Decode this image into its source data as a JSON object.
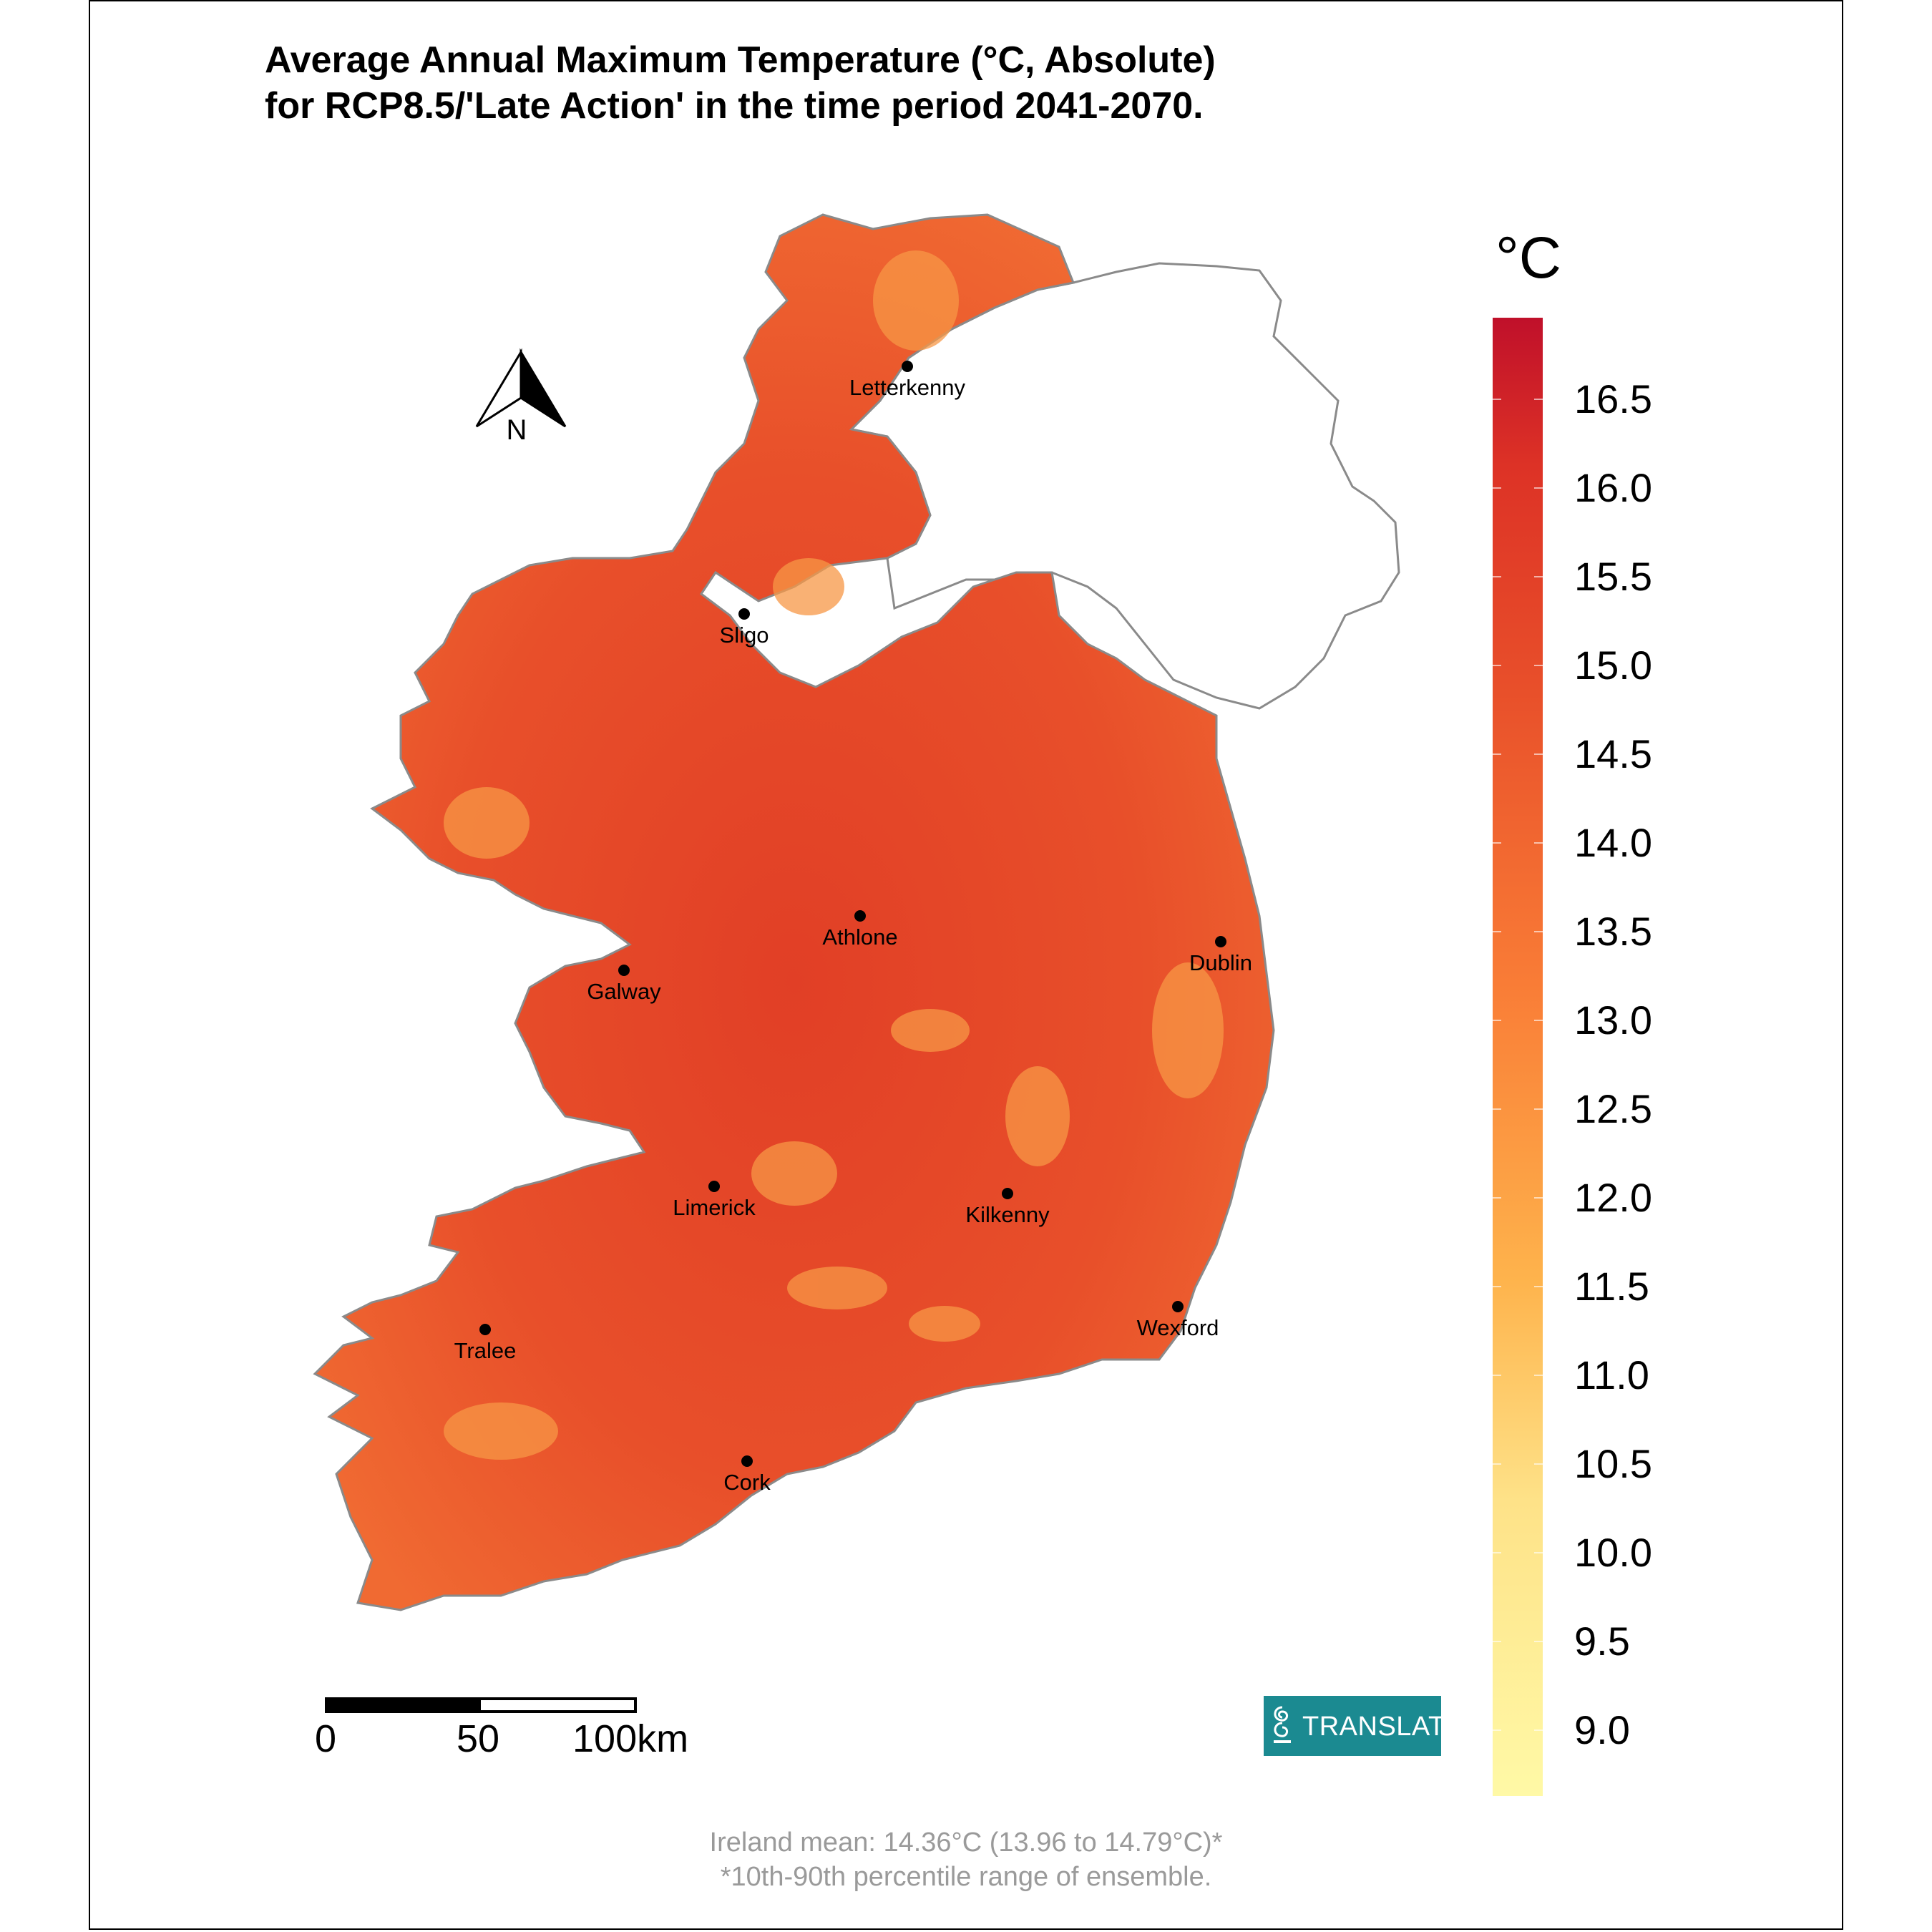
{
  "title": {
    "line1": "Average Annual Maximum Temperature (°C, Absolute)",
    "line2": "for RCP8.5/'Late Action' in the time period 2041-2070."
  },
  "north_arrow": {
    "label": "N"
  },
  "cities": [
    {
      "name": "Letterkenny"
    },
    {
      "name": "Sligo"
    },
    {
      "name": "Athlone"
    },
    {
      "name": "Dublin"
    },
    {
      "name": "Galway"
    },
    {
      "name": "Limerick"
    },
    {
      "name": "Kilkenny"
    },
    {
      "name": "Wexford"
    },
    {
      "name": "Tralee"
    },
    {
      "name": "Cork"
    }
  ],
  "legend": {
    "title": "°C",
    "ticks": [
      "16.5",
      "16.0",
      "15.5",
      "15.0",
      "14.5",
      "14.0",
      "13.5",
      "13.0",
      "12.5",
      "12.0",
      "11.5",
      "11.0",
      "10.5",
      "10.0",
      "9.5",
      "9.0"
    ],
    "colors": {
      "high": "#c0102a",
      "mid": "#e3402a",
      "low": "#fff9a6"
    }
  },
  "scale_bar": {
    "labels": [
      "0",
      "50",
      "100km"
    ]
  },
  "logo": {
    "text": "TRANSLATE",
    "color": "#1b8a91"
  },
  "footnote": {
    "line1": "Ireland mean: 14.36°C (13.96 to 14.79°C)*",
    "line2": "*10th-90th percentile range of ensemble."
  }
}
